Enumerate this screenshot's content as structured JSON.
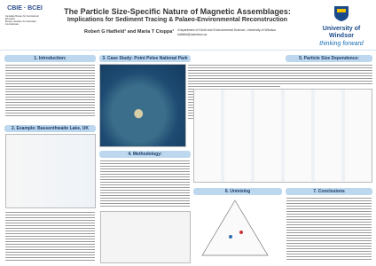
{
  "header": {
    "title": "The Particle Size-Specific Nature of Magnetic Assemblages:",
    "subtitle": "Implications for Sediment Tracing & Palaeo-Environmental Reconstruction",
    "authors": "Robert G Hatfield¹ and Maria T Cioppa¹",
    "affiliation": "¹Department of Earth and Environmental Science, University of Windsor",
    "email": "hatfield@uwindsor.ca",
    "left_logo": {
      "acronym": "CBIE · BCEI",
      "name_en": "Canadian Bureau for International Education",
      "name_fr": "Bureau canadien de l'éducation internationale"
    },
    "right_logo": {
      "name": "University of Windsor",
      "tagline": "thinking forward"
    }
  },
  "sections": [
    "1. Introduction:",
    "2. Example: Bassenthwaite Lake, UK",
    "3. Case Study: Point Pelee National Park",
    "4. Methodology:",
    "5. Particle Size Dependence:",
    "6. Unmixing",
    "7. Conclusions"
  ]
}
